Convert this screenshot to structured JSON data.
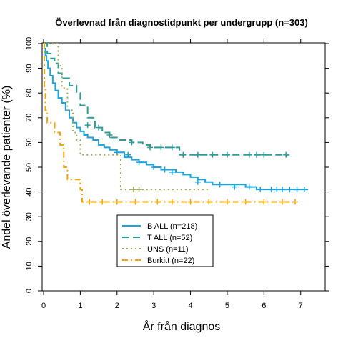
{
  "chart_data": {
    "type": "line",
    "title": "Överlevnad från diagnostidpunkt per undergrupp (n=303)",
    "xlabel": "År från diagnos",
    "ylabel": "Andel överlevande patienter (%)",
    "xlim": [
      0,
      7.5
    ],
    "ylim": [
      0,
      100
    ],
    "x_ticks": [
      0,
      1,
      2,
      3,
      4,
      5,
      6,
      7
    ],
    "y_ticks": [
      0,
      10,
      20,
      30,
      40,
      50,
      60,
      70,
      80,
      90,
      100
    ],
    "grid": false,
    "legend_position": "bottom-center",
    "series": [
      {
        "name": "B ALL (n=218)",
        "color": "#1BA3DD",
        "dash": "solid",
        "width": 2,
        "steps": [
          [
            0,
            100
          ],
          [
            0.02,
            98
          ],
          [
            0.05,
            95
          ],
          [
            0.08,
            93
          ],
          [
            0.12,
            90
          ],
          [
            0.18,
            87
          ],
          [
            0.25,
            84
          ],
          [
            0.32,
            81
          ],
          [
            0.4,
            78
          ],
          [
            0.5,
            76
          ],
          [
            0.6,
            73
          ],
          [
            0.7,
            70
          ],
          [
            0.8,
            68
          ],
          [
            0.9,
            66
          ],
          [
            1.0,
            64.5
          ],
          [
            1.1,
            63
          ],
          [
            1.2,
            62
          ],
          [
            1.35,
            61
          ],
          [
            1.5,
            59
          ],
          [
            1.65,
            58
          ],
          [
            1.8,
            57
          ],
          [
            2.0,
            56
          ],
          [
            2.2,
            54
          ],
          [
            2.4,
            53
          ],
          [
            2.6,
            52
          ],
          [
            2.8,
            51
          ],
          [
            3.0,
            50
          ],
          [
            3.2,
            49
          ],
          [
            3.6,
            48
          ],
          [
            3.8,
            47
          ],
          [
            4.0,
            46
          ],
          [
            4.2,
            45
          ],
          [
            4.4,
            44
          ],
          [
            4.6,
            43
          ],
          [
            5.0,
            43
          ],
          [
            5.5,
            42
          ],
          [
            5.8,
            41
          ],
          [
            7.2,
            41
          ]
        ],
        "censored": [
          [
            2.0,
            56
          ],
          [
            2.3,
            55
          ],
          [
            2.6,
            52
          ],
          [
            3.0,
            50
          ],
          [
            3.3,
            49
          ],
          [
            3.5,
            48
          ],
          [
            4.2,
            44
          ],
          [
            4.8,
            43
          ],
          [
            5.2,
            42
          ],
          [
            5.6,
            42
          ],
          [
            5.9,
            41
          ],
          [
            6.2,
            41
          ],
          [
            6.35,
            41
          ],
          [
            6.5,
            41
          ],
          [
            6.7,
            41
          ],
          [
            6.9,
            41
          ],
          [
            7.1,
            41
          ]
        ]
      },
      {
        "name": "T ALL (n=52)",
        "color": "#2A9D9A",
        "dash": "10 5",
        "width": 2,
        "steps": [
          [
            0,
            100
          ],
          [
            0.1,
            96
          ],
          [
            0.2,
            94
          ],
          [
            0.3,
            92
          ],
          [
            0.4,
            88
          ],
          [
            0.5,
            86
          ],
          [
            0.7,
            83
          ],
          [
            0.9,
            80
          ],
          [
            1.0,
            75
          ],
          [
            1.2,
            70
          ],
          [
            1.4,
            66
          ],
          [
            1.6,
            64
          ],
          [
            1.8,
            62
          ],
          [
            2.0,
            61
          ],
          [
            2.4,
            60
          ],
          [
            2.7,
            59
          ],
          [
            2.9,
            58
          ],
          [
            3.7,
            55
          ],
          [
            6.7,
            55
          ]
        ],
        "censored": [
          [
            1.2,
            67
          ],
          [
            1.5,
            66
          ],
          [
            1.8,
            63
          ],
          [
            2.4,
            60
          ],
          [
            2.9,
            58
          ],
          [
            3.2,
            58
          ],
          [
            3.5,
            58
          ],
          [
            3.8,
            55
          ],
          [
            4.2,
            55
          ],
          [
            4.6,
            55
          ],
          [
            5.0,
            55
          ],
          [
            5.6,
            55
          ],
          [
            5.8,
            55
          ],
          [
            6.0,
            55
          ],
          [
            6.6,
            55
          ]
        ]
      },
      {
        "name": "UNS (n=11)",
        "color": "#9AA95A",
        "dash": "2 4",
        "width": 2,
        "steps": [
          [
            0,
            100
          ],
          [
            0.4,
            91
          ],
          [
            0.5,
            82
          ],
          [
            0.65,
            73
          ],
          [
            0.8,
            64
          ],
          [
            0.9,
            61
          ],
          [
            1.0,
            55
          ],
          [
            2.1,
            41
          ],
          [
            4.5,
            41
          ]
        ],
        "censored": [
          [
            2.45,
            41
          ],
          [
            2.6,
            41
          ]
        ]
      },
      {
        "name": "Burkitt (n=22)",
        "color": "#F0A500",
        "dash": "8 4 2 4",
        "width": 2,
        "steps": [
          [
            0,
            100
          ],
          [
            0.02,
            82
          ],
          [
            0.05,
            73
          ],
          [
            0.1,
            68
          ],
          [
            0.3,
            64
          ],
          [
            0.45,
            59
          ],
          [
            0.55,
            50
          ],
          [
            0.65,
            45
          ],
          [
            1.0,
            41
          ],
          [
            1.05,
            36
          ],
          [
            6.9,
            36
          ]
        ],
        "censored": [
          [
            1.25,
            36
          ],
          [
            1.6,
            36
          ],
          [
            2.0,
            36
          ],
          [
            2.5,
            36
          ],
          [
            3.1,
            36
          ],
          [
            3.5,
            36
          ],
          [
            4.0,
            36
          ],
          [
            4.5,
            36
          ],
          [
            5.0,
            36
          ],
          [
            5.5,
            36
          ],
          [
            6.0,
            36
          ],
          [
            6.5,
            36
          ],
          [
            6.85,
            36
          ]
        ]
      }
    ]
  }
}
